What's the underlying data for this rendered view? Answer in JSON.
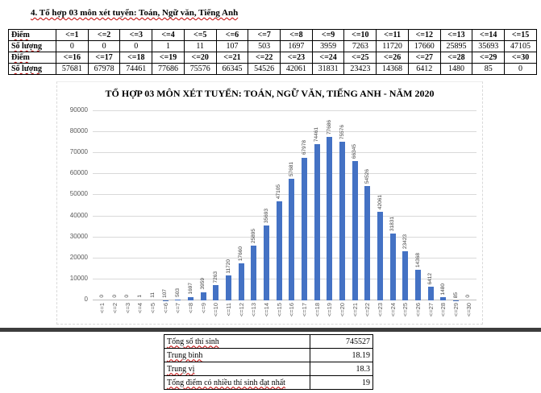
{
  "page": {
    "heading": "4. Tổ hợp 03 môn xét tuyển: Toán, Ngữ văn, Tiếng Anh"
  },
  "score_table": {
    "rows": [
      {
        "kind": "header",
        "label": "Điểm",
        "cells": [
          "<=1",
          "<=2",
          "<=3",
          "<=4",
          "<=5",
          "<=6",
          "<=7",
          "<=8",
          "<=9",
          "<=10",
          "<=11",
          "<=12",
          "<=13",
          "<=14",
          "<=15"
        ]
      },
      {
        "kind": "data",
        "label": "Số lượng",
        "cells": [
          "0",
          "0",
          "0",
          "1",
          "11",
          "107",
          "503",
          "1697",
          "3959",
          "7263",
          "11720",
          "17660",
          "25895",
          "35693",
          "47105"
        ]
      },
      {
        "kind": "header",
        "label": "Điểm",
        "cells": [
          "<=16",
          "<=17",
          "<=18",
          "<=19",
          "<=20",
          "<=21",
          "<=22",
          "<=23",
          "<=24",
          "<=25",
          "<=26",
          "<=27",
          "<=28",
          "<=29",
          "<=30"
        ]
      },
      {
        "kind": "data",
        "label": "Số lượng",
        "cells": [
          "57681",
          "67978",
          "74461",
          "77686",
          "75576",
          "66345",
          "54526",
          "42061",
          "31831",
          "23423",
          "14368",
          "6412",
          "1480",
          "85",
          "0"
        ]
      }
    ]
  },
  "chart_data": {
    "type": "bar",
    "title": "TỔ HỢP 03 MÔN XÉT TUYỂN: TOÁN, NGỮ VĂN, TIẾNG ANH - NĂM 2020",
    "categories": [
      "<=1",
      "<=2",
      "<=3",
      "<=4",
      "<=5",
      "<=6",
      "<=7",
      "<=8",
      "<=9",
      "<=10",
      "<=11",
      "<=12",
      "<=13",
      "<=14",
      "<=15",
      "<=16",
      "<=17",
      "<=18",
      "<=19",
      "<=20",
      "<=21",
      "<=22",
      "<=23",
      "<=24",
      "<=25",
      "<=26",
      "<=27",
      "<=28",
      "<=29",
      "<=30"
    ],
    "values": [
      0,
      0,
      0,
      1,
      11,
      107,
      503,
      1697,
      3959,
      7263,
      11720,
      17660,
      25895,
      35693,
      47105,
      57681,
      67978,
      74461,
      77686,
      75576,
      66345,
      54526,
      42061,
      31831,
      23423,
      14368,
      6412,
      1480,
      85,
      0
    ],
    "yticks": [
      0,
      10000,
      20000,
      30000,
      40000,
      50000,
      60000,
      70000,
      80000,
      90000
    ],
    "ylim": [
      0,
      90000
    ],
    "xlabel": "",
    "ylabel": "",
    "grid": true,
    "legend": "none",
    "data_labels": true,
    "bar_color": "#4472C4",
    "gridline_color": "#d9d9d9",
    "axis_label_color": "#595959"
  },
  "summary_table": {
    "rows": [
      {
        "label": "Tổng số thí sinh",
        "value": "745527"
      },
      {
        "label": "Trung bình",
        "value": "18.19"
      },
      {
        "label": "Trung vị",
        "value": "18.3"
      },
      {
        "label": "Tổng điểm có nhiều thí sinh đạt nhất",
        "value": "19"
      }
    ]
  }
}
